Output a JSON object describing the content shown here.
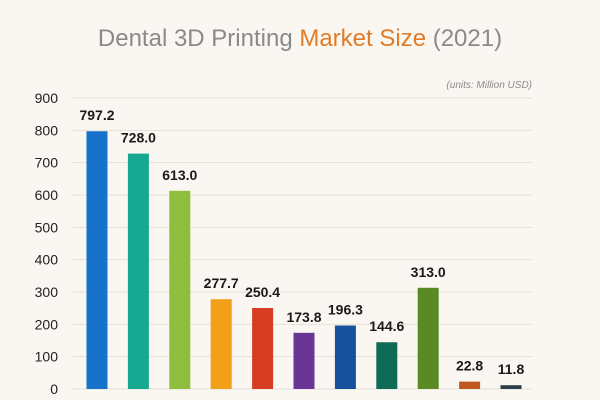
{
  "chart_data": {
    "type": "bar",
    "title_parts": [
      {
        "text": "Dental 3D Printing ",
        "color": "#8a8a8a"
      },
      {
        "text": "Market Size",
        "color": "#e07b28"
      },
      {
        "text": " (2021)",
        "color": "#8a8a8a"
      }
    ],
    "units": "(units: Million USD)",
    "values": [
      797.2,
      728.0,
      613.0,
      277.7,
      250.4,
      173.8,
      196.3,
      144.6,
      313.0,
      22.8,
      11.8
    ],
    "value_labels": [
      "797.2",
      "728.0",
      "613.0",
      "277.7",
      "250.4",
      "173.8",
      "196.3",
      "144.6",
      "313.0",
      "22.8",
      "11.8"
    ],
    "colors": [
      "#1673c9",
      "#16a890",
      "#8fbd3d",
      "#f2a017",
      "#d83c22",
      "#6a3696",
      "#17519e",
      "#0f6b55",
      "#5a8a24",
      "#c0571d",
      "#2e3d4a"
    ],
    "y_ticks": [
      "900",
      "800",
      "700",
      "600",
      "500",
      "400",
      "300",
      "200",
      "100",
      "0"
    ],
    "ylim": [
      0,
      900
    ],
    "grid": true,
    "xlabel": "",
    "ylabel": ""
  }
}
